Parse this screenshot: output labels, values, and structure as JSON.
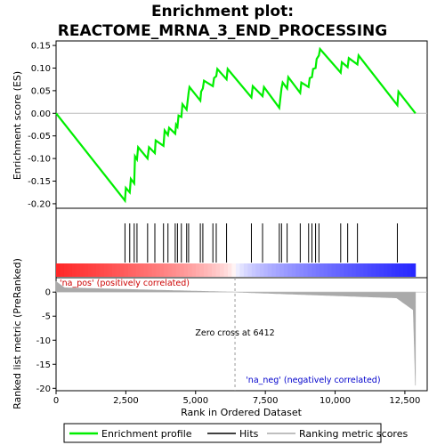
{
  "chart_data": {
    "type": "line",
    "title_line1": "Enrichment plot:",
    "title_line2": "REACTOME_MRNA_3_END_PROCESSING",
    "xlabel": "Rank in Ordered Dataset",
    "ylabel_top": "Enrichment score (ES)",
    "ylabel_bottom": "Ranked list metric (PreRanked)",
    "xlim": [
      0,
      13300
    ],
    "x_ticks": [
      0,
      2500,
      5000,
      7500,
      10000,
      12500
    ],
    "x_tick_labels": [
      "0",
      "2,500",
      "5,000",
      "7,500",
      "10,000",
      "12,500"
    ],
    "es_ylim": [
      -0.21,
      0.16
    ],
    "es_y_ticks": [
      -0.2,
      -0.15,
      -0.1,
      -0.05,
      0.0,
      0.05,
      0.1,
      0.15
    ],
    "es_y_tick_labels": [
      "-0.20",
      "-0.15",
      "-0.10",
      "-0.05",
      "0.00",
      "0.05",
      "0.10",
      "0.15"
    ],
    "metric_ylim": [
      -20.5,
      3
    ],
    "metric_y_ticks": [
      0,
      -5,
      -10,
      -15,
      -20
    ],
    "metric_y_tick_labels": [
      "0",
      "-5",
      "-10",
      "-15",
      "-20"
    ],
    "zero_cross_rank": 6412,
    "zero_cross_label": "Zero cross at 6412",
    "pos_label": "'na_pos' (positively correlated)",
    "neg_label": "'na_neg' (negatively correlated)",
    "series": [
      {
        "name": "Enrichment profile",
        "x": [
          0,
          2470,
          2500,
          2640,
          2680,
          2800,
          2830,
          2900,
          2940,
          3280,
          3330,
          3540,
          3570,
          3850,
          3890,
          4010,
          4050,
          4270,
          4300,
          4350,
          4390,
          4490,
          4530,
          4680,
          4720,
          4750,
          4780,
          5170,
          5200,
          5260,
          5300,
          5620,
          5660,
          5740,
          5780,
          6110,
          6150,
          7000,
          7050,
          7400,
          7450,
          8000,
          8050,
          8080,
          8120,
          8280,
          8320,
          8750,
          8790,
          9050,
          9090,
          9170,
          9210,
          9300,
          9340,
          9420,
          9460,
          10200,
          10240,
          10450,
          10490,
          10800,
          10840,
          12230,
          12270,
          12880
        ],
        "y": [
          0.0,
          -0.193,
          -0.165,
          -0.175,
          -0.145,
          -0.155,
          -0.095,
          -0.102,
          -0.075,
          -0.1,
          -0.075,
          -0.088,
          -0.06,
          -0.072,
          -0.038,
          -0.048,
          -0.032,
          -0.045,
          -0.025,
          -0.03,
          -0.005,
          -0.008,
          0.02,
          0.008,
          0.03,
          0.045,
          0.058,
          0.028,
          0.048,
          0.055,
          0.072,
          0.06,
          0.078,
          0.082,
          0.098,
          0.075,
          0.098,
          0.035,
          0.06,
          0.038,
          0.058,
          0.012,
          0.04,
          0.055,
          0.068,
          0.055,
          0.08,
          0.045,
          0.068,
          0.058,
          0.078,
          0.08,
          0.098,
          0.1,
          0.12,
          0.128,
          0.142,
          0.09,
          0.113,
          0.102,
          0.122,
          0.108,
          0.128,
          0.018,
          0.048,
          0.0
        ]
      }
    ],
    "hits": [
      2470,
      2640,
      2800,
      2900,
      3280,
      3540,
      3850,
      4010,
      4270,
      4350,
      4490,
      4680,
      4750,
      5170,
      5260,
      5620,
      5740,
      6110,
      7000,
      7400,
      8000,
      8080,
      8280,
      8750,
      9050,
      9170,
      9300,
      9420,
      10200,
      10450,
      10800,
      12230
    ],
    "legend": [
      "Enrichment profile",
      "Hits",
      "Ranking metric scores"
    ],
    "colors": {
      "es_line": "#00ee00",
      "hits": "#000000",
      "metric": "#aaaaaa",
      "pos_text": "#cc0000",
      "neg_text": "#0000cc",
      "zero_line": "#999999",
      "bar_red": "#ff0000",
      "bar_blue": "#0000ff"
    }
  }
}
